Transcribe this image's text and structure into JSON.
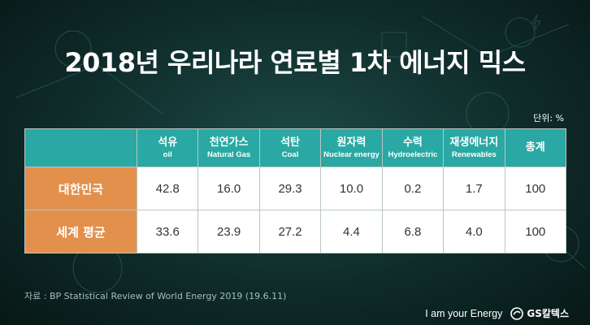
{
  "title": "2018년 우리나라 연료별 1차 에너지 믹스",
  "unit_label": "단위: %",
  "table": {
    "columns": [
      {
        "ko": "석유",
        "en": "oil"
      },
      {
        "ko": "천연가스",
        "en": "Natural Gas"
      },
      {
        "ko": "석탄",
        "en": "Coal"
      },
      {
        "ko": "원자력",
        "en": "Nuclear energy"
      },
      {
        "ko": "수력",
        "en": "Hydroelectric"
      },
      {
        "ko": "재생에너지",
        "en": "Renewables"
      },
      {
        "ko": "총계",
        "en": ""
      }
    ],
    "rows": [
      {
        "label": "대한민국",
        "values": [
          "42.8",
          "16.0",
          "29.3",
          "10.0",
          "0.2",
          "1.7",
          "100"
        ]
      },
      {
        "label": "세계 평균",
        "values": [
          "33.6",
          "23.9",
          "27.2",
          "4.4",
          "6.8",
          "4.0",
          "100"
        ]
      }
    ]
  },
  "source": "자료 : BP Statistical Review of World Energy 2019 (19.6.11)",
  "footer": {
    "slogan": "I am your Energy",
    "brand": "GS칼텍스"
  },
  "colors": {
    "header_teal": "#2aa8a3",
    "row_orange": "#e2904c",
    "background": "#0f2c2a"
  }
}
